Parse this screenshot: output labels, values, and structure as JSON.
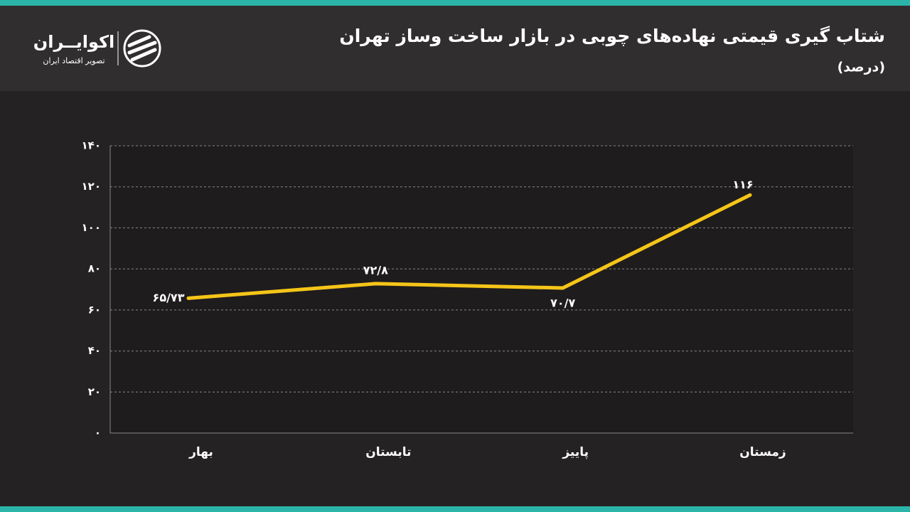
{
  "logo": {
    "name": "اکوایــران",
    "tagline": "تصویر اقتصاد ایران"
  },
  "chart_data": {
    "type": "line",
    "title": "شتاب گیری قیمتی نهاده‌های چوبی در بازار ساخت وساز تهران",
    "subtitle": "(درصد)",
    "categories": [
      "بهار",
      "تابستان",
      "پاییز",
      "زمستان"
    ],
    "values": [
      65.73,
      72.8,
      70.7,
      116
    ],
    "value_labels": [
      "۶۵/۷۳",
      "۷۲/۸",
      "۷۰/۷",
      "۱۱۶"
    ],
    "color": "#f5c518",
    "ylim": [
      0,
      140
    ],
    "yticks": [
      {
        "value": 0,
        "label": "۰"
      },
      {
        "value": 20,
        "label": "۲۰"
      },
      {
        "value": 40,
        "label": "۴۰"
      },
      {
        "value": 60,
        "label": "۶۰"
      },
      {
        "value": 80,
        "label": "۸۰"
      },
      {
        "value": 100,
        "label": "۱۰۰"
      },
      {
        "value": 120,
        "label": "۱۲۰"
      },
      {
        "value": 140,
        "label": "۱۴۰"
      }
    ],
    "grid": true
  }
}
